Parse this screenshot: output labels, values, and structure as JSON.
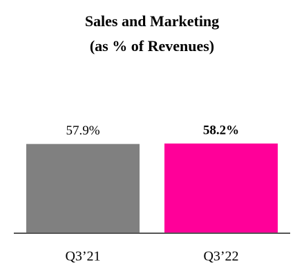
{
  "chart_data": {
    "type": "bar",
    "title": "Sales and Marketing",
    "subtitle": "(as % of Revenues)",
    "categories": [
      "Q3’21",
      "Q3’22"
    ],
    "values": [
      57.9,
      58.2
    ],
    "value_labels": [
      "57.9%",
      "58.2%"
    ],
    "colors": [
      "#808080",
      "#ff0099"
    ],
    "value_label_bold": [
      false,
      true
    ]
  }
}
